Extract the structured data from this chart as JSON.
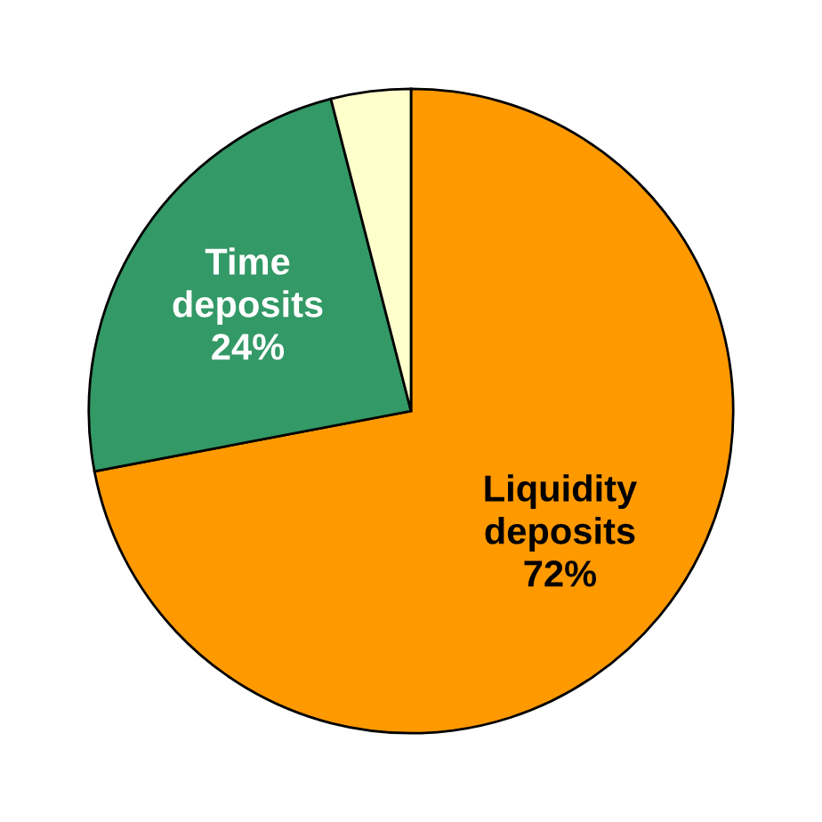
{
  "chart_data": {
    "type": "pie",
    "categories": [
      "Liquidity deposits",
      "Time deposits",
      null
    ],
    "values": [
      72,
      24,
      4
    ],
    "colors": [
      "#ff9900",
      "#339966",
      "#ffffcc"
    ],
    "value_labels": [
      "72%",
      "24%",
      null
    ]
  }
}
